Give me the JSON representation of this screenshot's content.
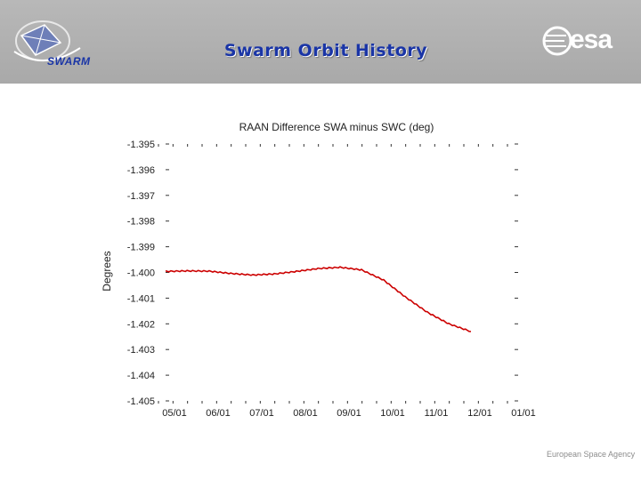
{
  "header": {
    "title": "Swarm Orbit History",
    "left_logo_text": "SWARM",
    "right_logo_text": "esa"
  },
  "footer": {
    "agency": "European Space Agency"
  },
  "colors": {
    "header_bg": "#ababab",
    "title": "#1a35a6",
    "series": "#cc0000"
  },
  "chart_data": {
    "type": "line",
    "title": "RAAN Difference SWA minus SWC (deg)",
    "xlabel": "",
    "ylabel": "Degrees",
    "ylim": [
      -1.405,
      -1.395
    ],
    "y_ticks": [
      "-1.395",
      "-1.396",
      "-1.397",
      "-1.398",
      "-1.399",
      "-1.400",
      "-1.401",
      "-1.402",
      "-1.403",
      "-1.404",
      "-1.405"
    ],
    "x_ticks": [
      "05/01",
      "06/01",
      "07/01",
      "08/01",
      "09/01",
      "10/01",
      "11/01",
      "12/01",
      "01/01"
    ],
    "grid": false,
    "series": [
      {
        "x": [
          "05/01",
          "05/16",
          "06/01",
          "06/16",
          "07/01",
          "07/16",
          "08/01",
          "08/16",
          "09/01",
          "09/16",
          "10/01",
          "10/16",
          "11/01",
          "11/16",
          "12/01"
        ],
        "values": [
          -1.39996,
          -1.39994,
          -1.39995,
          -1.40004,
          -1.4001,
          -1.40006,
          -1.39996,
          -1.39985,
          -1.3998,
          -1.3999,
          -1.4003,
          -1.40095,
          -1.40155,
          -1.402,
          -1.4023
        ]
      }
    ]
  }
}
